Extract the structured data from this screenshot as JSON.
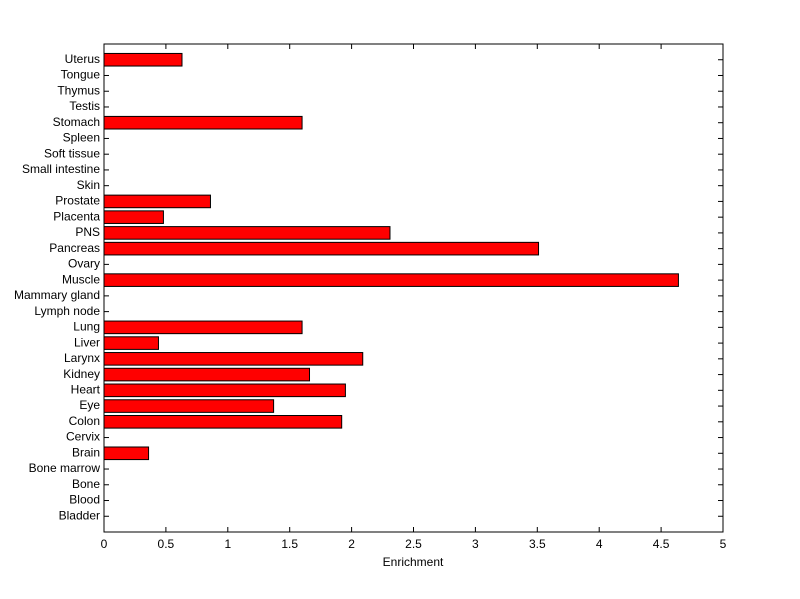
{
  "chart_data": {
    "type": "barh",
    "x_label": "Enrichment",
    "categories": [
      "Bladder",
      "Blood",
      "Bone",
      "Bone marrow",
      "Brain",
      "Cervix",
      "Colon",
      "Eye",
      "Heart",
      "Kidney",
      "Larynx",
      "Liver",
      "Lung",
      "Lymph node",
      "Mammary gland",
      "Muscle",
      "Ovary",
      "Pancreas",
      "PNS",
      "Placenta",
      "Prostate",
      "Skin",
      "Small intestine",
      "Soft tissue",
      "Spleen",
      "Stomach",
      "Testis",
      "Thymus",
      "Tongue",
      "Uterus"
    ],
    "values": [
      0,
      0,
      0,
      0,
      0.36,
      0,
      1.92,
      1.37,
      1.95,
      1.66,
      2.09,
      0.44,
      1.6,
      0,
      0,
      4.64,
      0,
      3.51,
      2.31,
      0.48,
      0.86,
      0,
      0,
      0,
      0,
      1.6,
      0,
      0,
      0,
      0.63
    ],
    "color": "#ff0000",
    "xlim": [
      0,
      5
    ],
    "xticks": [
      0,
      0.5,
      1,
      1.5,
      2,
      2.5,
      3,
      3.5,
      4,
      4.5,
      5
    ]
  }
}
